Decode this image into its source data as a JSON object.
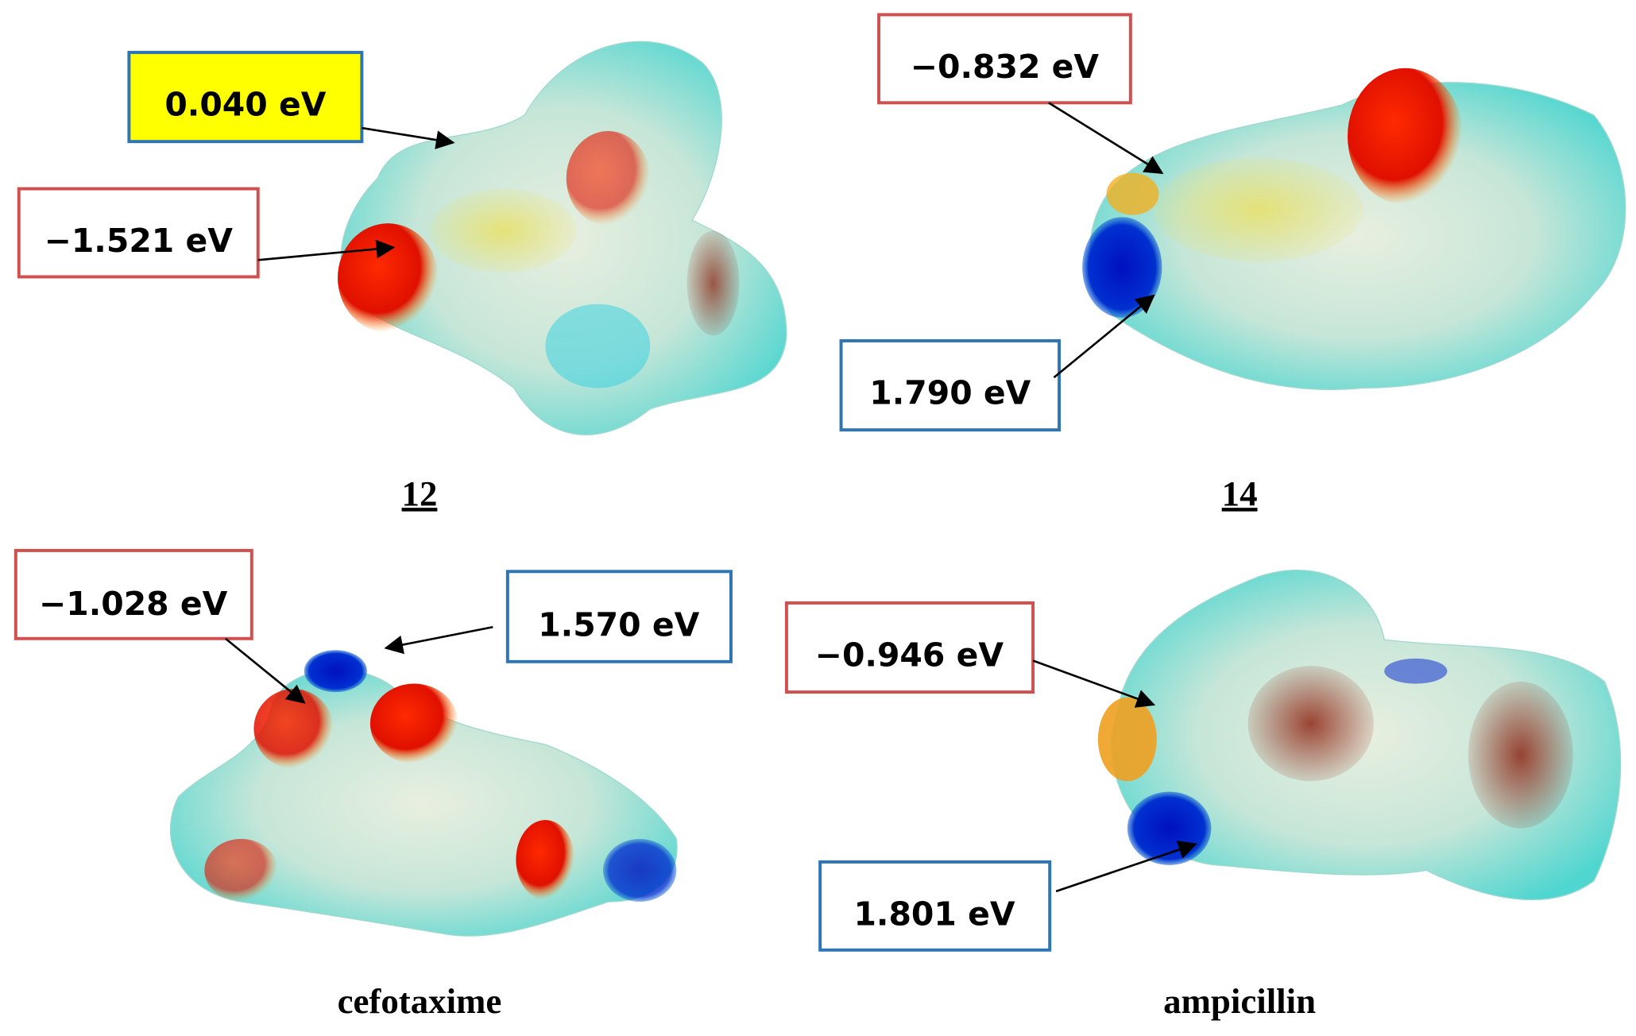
{
  "panels": [
    {
      "label": "12",
      "annotations": [
        {
          "text": "0.040 eV"
        },
        {
          "text": "−1.521 eV"
        }
      ]
    },
    {
      "label": "14",
      "annotations": [
        {
          "text": "−0.832 eV"
        },
        {
          "text": "1.790 eV"
        }
      ]
    },
    {
      "label": "cefotaxime",
      "annotations": [
        {
          "text": "−1.028 eV"
        },
        {
          "text": "1.570 eV"
        }
      ]
    },
    {
      "label": "ampicillin",
      "annotations": [
        {
          "text": "−0.946 eV"
        },
        {
          "text": "1.801 eV"
        }
      ]
    }
  ]
}
